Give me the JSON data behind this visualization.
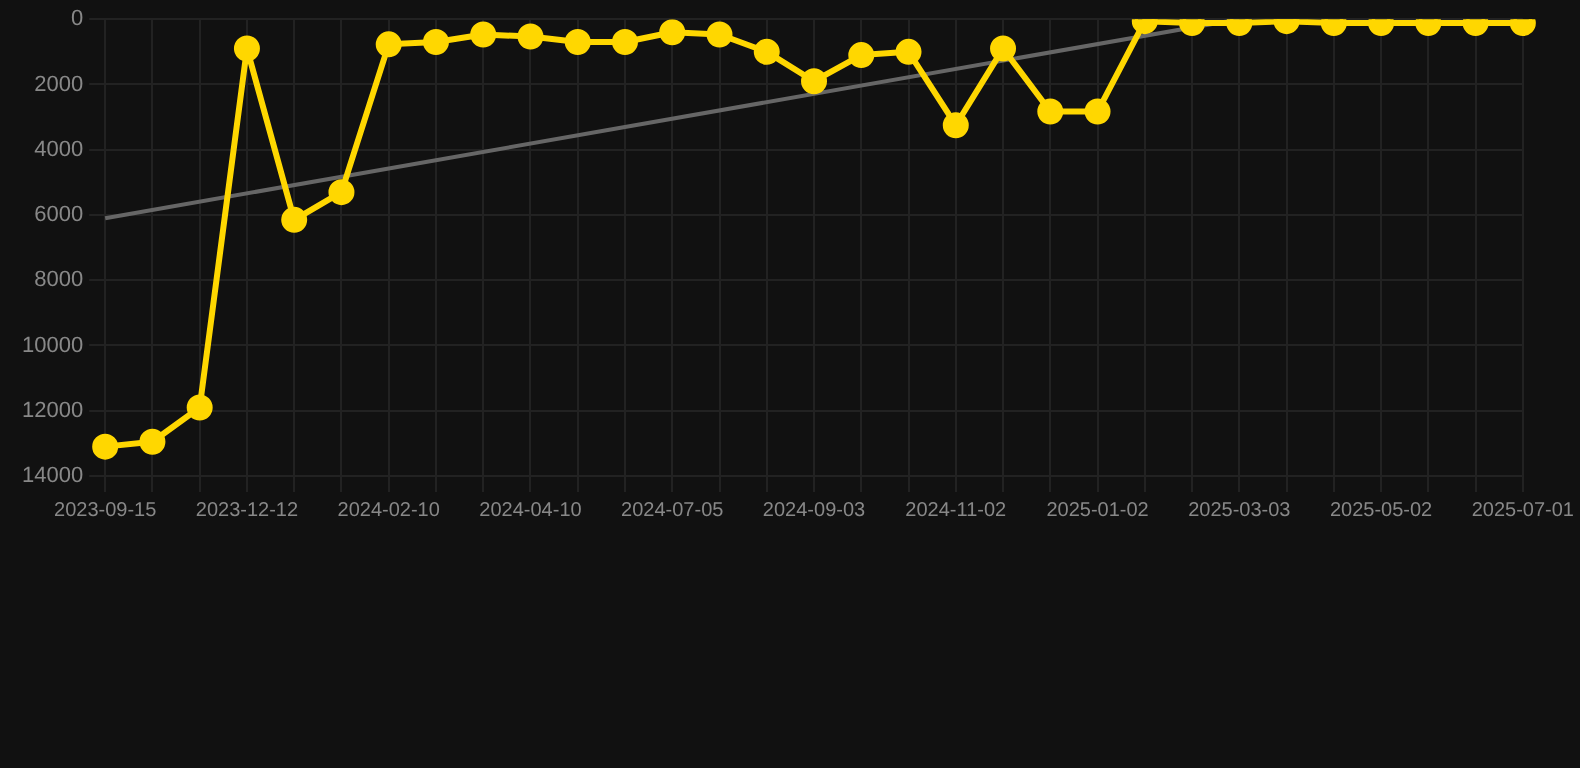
{
  "chart_data": {
    "type": "line",
    "categories": [
      "2023-09-15",
      null,
      null,
      "2023-12-12",
      null,
      null,
      "2024-02-10",
      null,
      null,
      "2024-04-10",
      null,
      null,
      "2024-07-05",
      null,
      null,
      "2024-09-03",
      null,
      null,
      "2024-11-02",
      null,
      null,
      "2025-01-02",
      null,
      null,
      "2025-03-03",
      null,
      null,
      "2025-05-02",
      null,
      null,
      "2025-07-01"
    ],
    "series": [
      {
        "color": "#ffd700",
        "marker": "circle",
        "values": [
          13100,
          12950,
          11900,
          900,
          6150,
          5300,
          770,
          700,
          470,
          530,
          700,
          700,
          400,
          470,
          1000,
          1900,
          1100,
          1000,
          3250,
          900,
          2830,
          2830,
          60,
          120,
          120,
          60,
          120,
          120,
          120,
          120,
          120
        ]
      },
      {
        "color": "#666666",
        "marker": "none",
        "values": [
          6100,
          null,
          null,
          null,
          null,
          null,
          null,
          null,
          null,
          null,
          null,
          null,
          null,
          null,
          null,
          null,
          null,
          null,
          null,
          null,
          null,
          null,
          null,
          null,
          0,
          null,
          null,
          null,
          null,
          null,
          null
        ]
      }
    ],
    "ylim": [
      14000,
      0
    ],
    "yticks": [
      0,
      2000,
      4000,
      6000,
      8000,
      10000,
      12000,
      14000
    ],
    "grid": true,
    "legend": false
  }
}
